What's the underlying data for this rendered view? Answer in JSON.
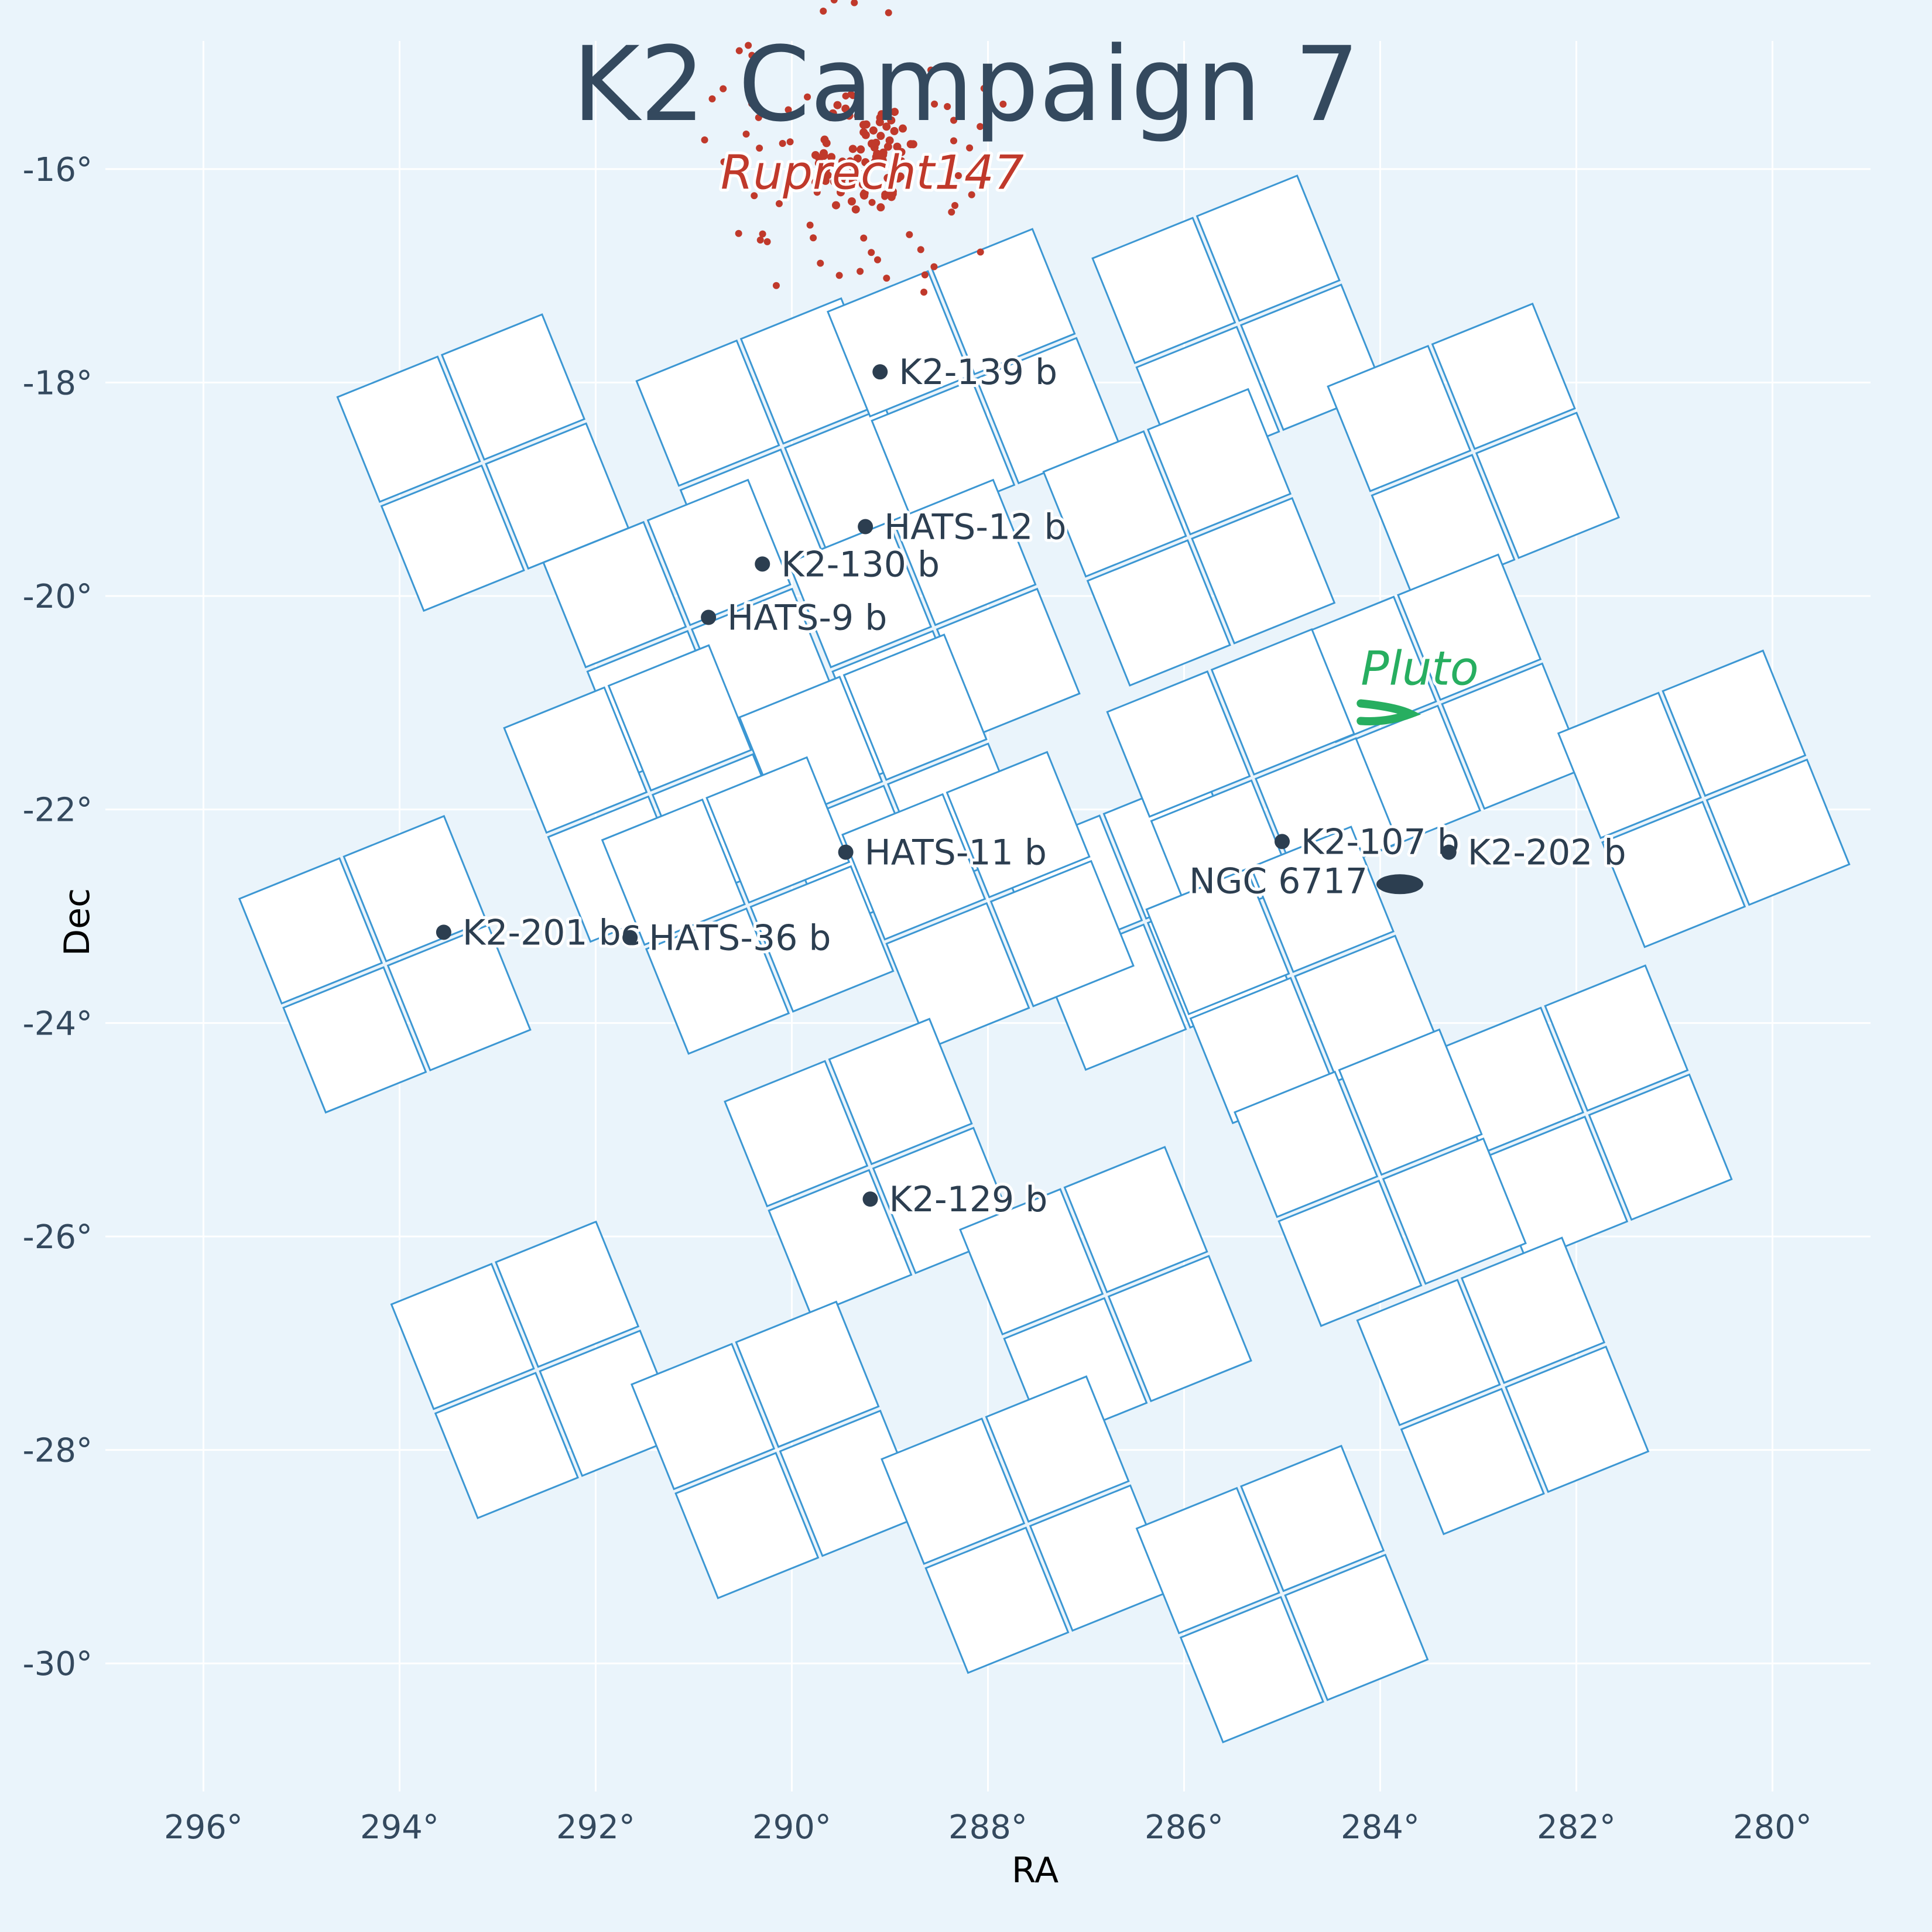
{
  "chart_data": {
    "type": "scatter",
    "title": "K2 Campaign 7",
    "xlabel": "RA",
    "ylabel": "Dec",
    "xlim": [
      297,
      279
    ],
    "ylim": [
      -31.2,
      -14.8
    ],
    "x_ticks": [
      296,
      294,
      292,
      290,
      288,
      286,
      284,
      282,
      280
    ],
    "x_tick_labels": [
      "296°",
      "294°",
      "292°",
      "290°",
      "288°",
      "286°",
      "284°",
      "282°",
      "280°"
    ],
    "y_ticks": [
      -16,
      -18,
      -20,
      -22,
      -24,
      -26,
      -28,
      -30
    ],
    "y_tick_labels": [
      "-16°",
      "-18°",
      "-20°",
      "-22°",
      "-24°",
      "-26°",
      "-28°",
      "-30°"
    ],
    "grid": true,
    "modules": [
      [
        290.1,
        -18.6
      ],
      [
        288.15,
        -17.95
      ],
      [
        285.45,
        -17.45
      ],
      [
        283.05,
        -18.65
      ],
      [
        293.15,
        -18.75
      ],
      [
        291.05,
        -20.3
      ],
      [
        288.55,
        -20.3
      ],
      [
        285.95,
        -19.45
      ],
      [
        283.4,
        -21.0
      ],
      [
        280.7,
        -21.9
      ],
      [
        291.45,
        -21.85
      ],
      [
        289.05,
        -21.75
      ],
      [
        286.4,
        -23.05
      ],
      [
        294.15,
        -23.45
      ],
      [
        290.45,
        -22.9
      ],
      [
        288.0,
        -22.85
      ],
      [
        285.3,
        -21.7
      ],
      [
        284.9,
        -23.55
      ],
      [
        281.9,
        -24.85
      ],
      [
        289.2,
        -25.35
      ],
      [
        286.8,
        -26.55
      ],
      [
        284.0,
        -25.45
      ],
      [
        292.6,
        -27.25
      ],
      [
        290.15,
        -28.0
      ],
      [
        287.6,
        -28.7
      ],
      [
        285.0,
        -29.35
      ],
      [
        282.75,
        -27.4
      ]
    ],
    "module_size": [
      2.25,
      2.35
    ],
    "module_tilt_deg": -22,
    "planets": [
      {
        "name": "K2-139 b",
        "ra": 289.1,
        "dec": -17.9
      },
      {
        "name": "HATS-12 b",
        "ra": 289.25,
        "dec": -19.35
      },
      {
        "name": "K2-130 b",
        "ra": 290.3,
        "dec": -19.7
      },
      {
        "name": "HATS-9 b",
        "ra": 290.85,
        "dec": -20.2
      },
      {
        "name": "HATS-11 b",
        "ra": 289.45,
        "dec": -22.4
      },
      {
        "name": "K2-107 b",
        "ra": 285.0,
        "dec": -22.3
      },
      {
        "name": "K2-202 b",
        "ra": 283.3,
        "dec": -22.4
      },
      {
        "name": "K2-201 bc",
        "ra": 293.55,
        "dec": -23.15
      },
      {
        "name": "HATS-36 b",
        "ra": 291.65,
        "dec": -23.2
      },
      {
        "name": "K2-129 b",
        "ra": 289.2,
        "dec": -25.65
      }
    ],
    "ngc6717": {
      "name": "NGC 6717",
      "ra": 283.8,
      "dec": -22.7
    },
    "pluto": {
      "name": "Pluto",
      "ra": 283.9,
      "dec": -21.05
    },
    "ruprecht147": {
      "name": "Ruprecht147",
      "ra": 289.15,
      "dec": -16.25
    },
    "colors": {
      "background": "#eaf4fb",
      "ccd_edge": "#3c97d3",
      "planet": "#2c3e50",
      "cluster": "#c0392b",
      "pluto": "#27ae60"
    }
  }
}
